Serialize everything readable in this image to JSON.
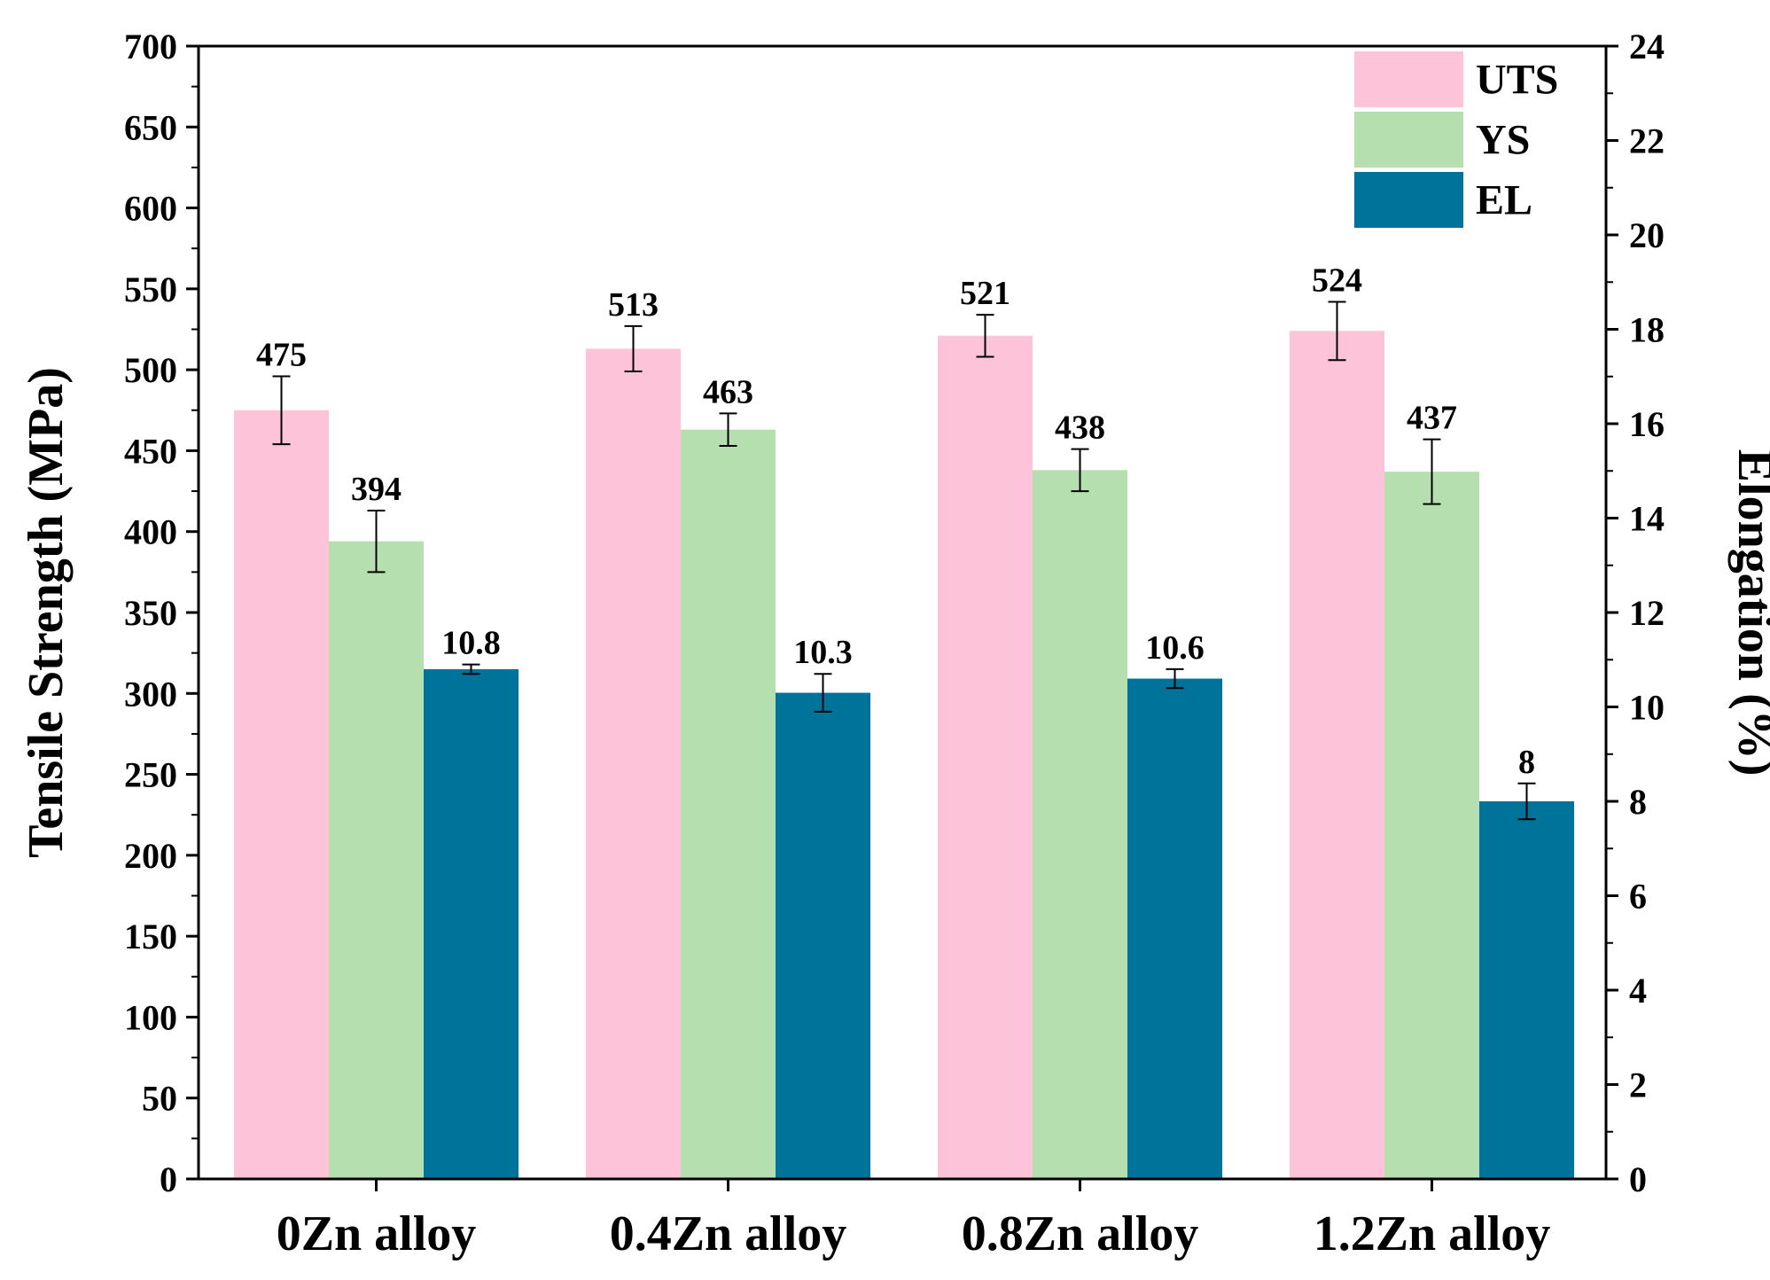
{
  "chart_data": {
    "type": "bar",
    "categories": [
      "0Zn alloy",
      "0.4Zn alloy",
      "0.8Zn alloy",
      "1.2Zn alloy"
    ],
    "series": [
      {
        "name": "UTS",
        "axis": "left",
        "color": "#fcc3d9",
        "values": [
          475,
          513,
          521,
          524
        ],
        "errors": [
          21,
          14,
          13,
          18
        ],
        "labels": [
          "475",
          "513",
          "521",
          "524"
        ]
      },
      {
        "name": "YS",
        "axis": "left",
        "color": "#b5dfae",
        "values": [
          394,
          463,
          438,
          437
        ],
        "errors": [
          19,
          10,
          13,
          20
        ],
        "labels": [
          "394",
          "463",
          "438",
          "437"
        ]
      },
      {
        "name": "EL",
        "axis": "right",
        "color": "#00739b",
        "values": [
          10.8,
          10.3,
          10.6,
          8
        ],
        "errors": [
          0.1,
          0.4,
          0.2,
          0.38
        ],
        "labels": [
          "10.8",
          "10.3",
          "10.6",
          "8"
        ]
      }
    ],
    "ylabel": "Tensile Strength (MPa)",
    "ylim": [
      0,
      700
    ],
    "yticks": [
      0,
      50,
      100,
      150,
      200,
      250,
      300,
      350,
      400,
      450,
      500,
      550,
      600,
      650,
      700
    ],
    "y2label": "Elongation (%)",
    "y2lim": [
      0,
      24
    ],
    "y2ticks": [
      0,
      2,
      4,
      6,
      8,
      10,
      12,
      14,
      16,
      18,
      20,
      22,
      24
    ],
    "xlabel": "",
    "title": "",
    "legend_position": "top-right",
    "grid": false
  }
}
